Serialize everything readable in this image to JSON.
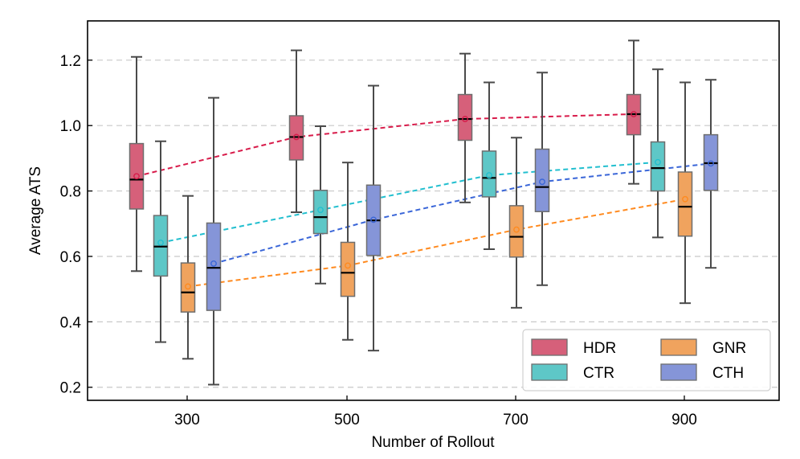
{
  "chart_data": {
    "type": "box",
    "title": "",
    "xlabel": "Number of Rollout",
    "ylabel": "Average ATS",
    "categories": [
      "300",
      "500",
      "700",
      "900"
    ],
    "ylim": [
      0.16,
      1.32
    ],
    "yticks": [
      "0.2",
      "0.4",
      "0.6",
      "0.8",
      "1.0",
      "1.2"
    ],
    "grid": "horizontal-dashed",
    "legend_position": "bottom-right",
    "series": [
      {
        "name": "HDR",
        "color": "#d6607a",
        "line_color": "#d81b4a",
        "boxes": [
          {
            "min": 0.555,
            "q1": 0.745,
            "median": 0.835,
            "q3": 0.945,
            "max": 1.21,
            "mean": 0.845
          },
          {
            "min": 0.735,
            "q1": 0.895,
            "median": 0.965,
            "q3": 1.03,
            "max": 1.23,
            "mean": 0.965
          },
          {
            "min": 0.765,
            "q1": 0.955,
            "median": 1.02,
            "q3": 1.095,
            "max": 1.22,
            "mean": 1.02
          },
          {
            "min": 0.822,
            "q1": 0.972,
            "median": 1.035,
            "q3": 1.095,
            "max": 1.26,
            "mean": 1.035
          }
        ]
      },
      {
        "name": "CTR",
        "color": "#5ec7c7",
        "line_color": "#22bfcf",
        "boxes": [
          {
            "min": 0.338,
            "q1": 0.54,
            "median": 0.63,
            "q3": 0.725,
            "max": 0.952,
            "mean": 0.642
          },
          {
            "min": 0.517,
            "q1": 0.67,
            "median": 0.72,
            "q3": 0.802,
            "max": 0.998,
            "mean": 0.742
          },
          {
            "min": 0.622,
            "q1": 0.782,
            "median": 0.84,
            "q3": 0.922,
            "max": 1.132,
            "mean": 0.848
          },
          {
            "min": 0.658,
            "q1": 0.8,
            "median": 0.87,
            "q3": 0.95,
            "max": 1.172,
            "mean": 0.888
          }
        ]
      },
      {
        "name": "GNR",
        "color": "#f0a35e",
        "line_color": "#ff8a1f",
        "boxes": [
          {
            "min": 0.287,
            "q1": 0.43,
            "median": 0.49,
            "q3": 0.58,
            "max": 0.785,
            "mean": 0.508
          },
          {
            "min": 0.345,
            "q1": 0.478,
            "median": 0.55,
            "q3": 0.643,
            "max": 0.887,
            "mean": 0.572
          },
          {
            "min": 0.443,
            "q1": 0.598,
            "median": 0.66,
            "q3": 0.755,
            "max": 0.963,
            "mean": 0.682
          },
          {
            "min": 0.457,
            "q1": 0.662,
            "median": 0.752,
            "q3": 0.858,
            "max": 1.132,
            "mean": 0.775
          }
        ]
      },
      {
        "name": "CTH",
        "color": "#8595d8",
        "line_color": "#3a66d8",
        "boxes": [
          {
            "min": 0.208,
            "q1": 0.435,
            "median": 0.565,
            "q3": 0.702,
            "max": 1.085,
            "mean": 0.578
          },
          {
            "min": 0.312,
            "q1": 0.603,
            "median": 0.71,
            "q3": 0.818,
            "max": 1.122,
            "mean": 0.712
          },
          {
            "min": 0.512,
            "q1": 0.737,
            "median": 0.812,
            "q3": 0.928,
            "max": 1.162,
            "mean": 0.828
          },
          {
            "min": 0.565,
            "q1": 0.802,
            "median": 0.885,
            "q3": 0.972,
            "max": 1.14,
            "mean": 0.884
          }
        ]
      }
    ]
  }
}
